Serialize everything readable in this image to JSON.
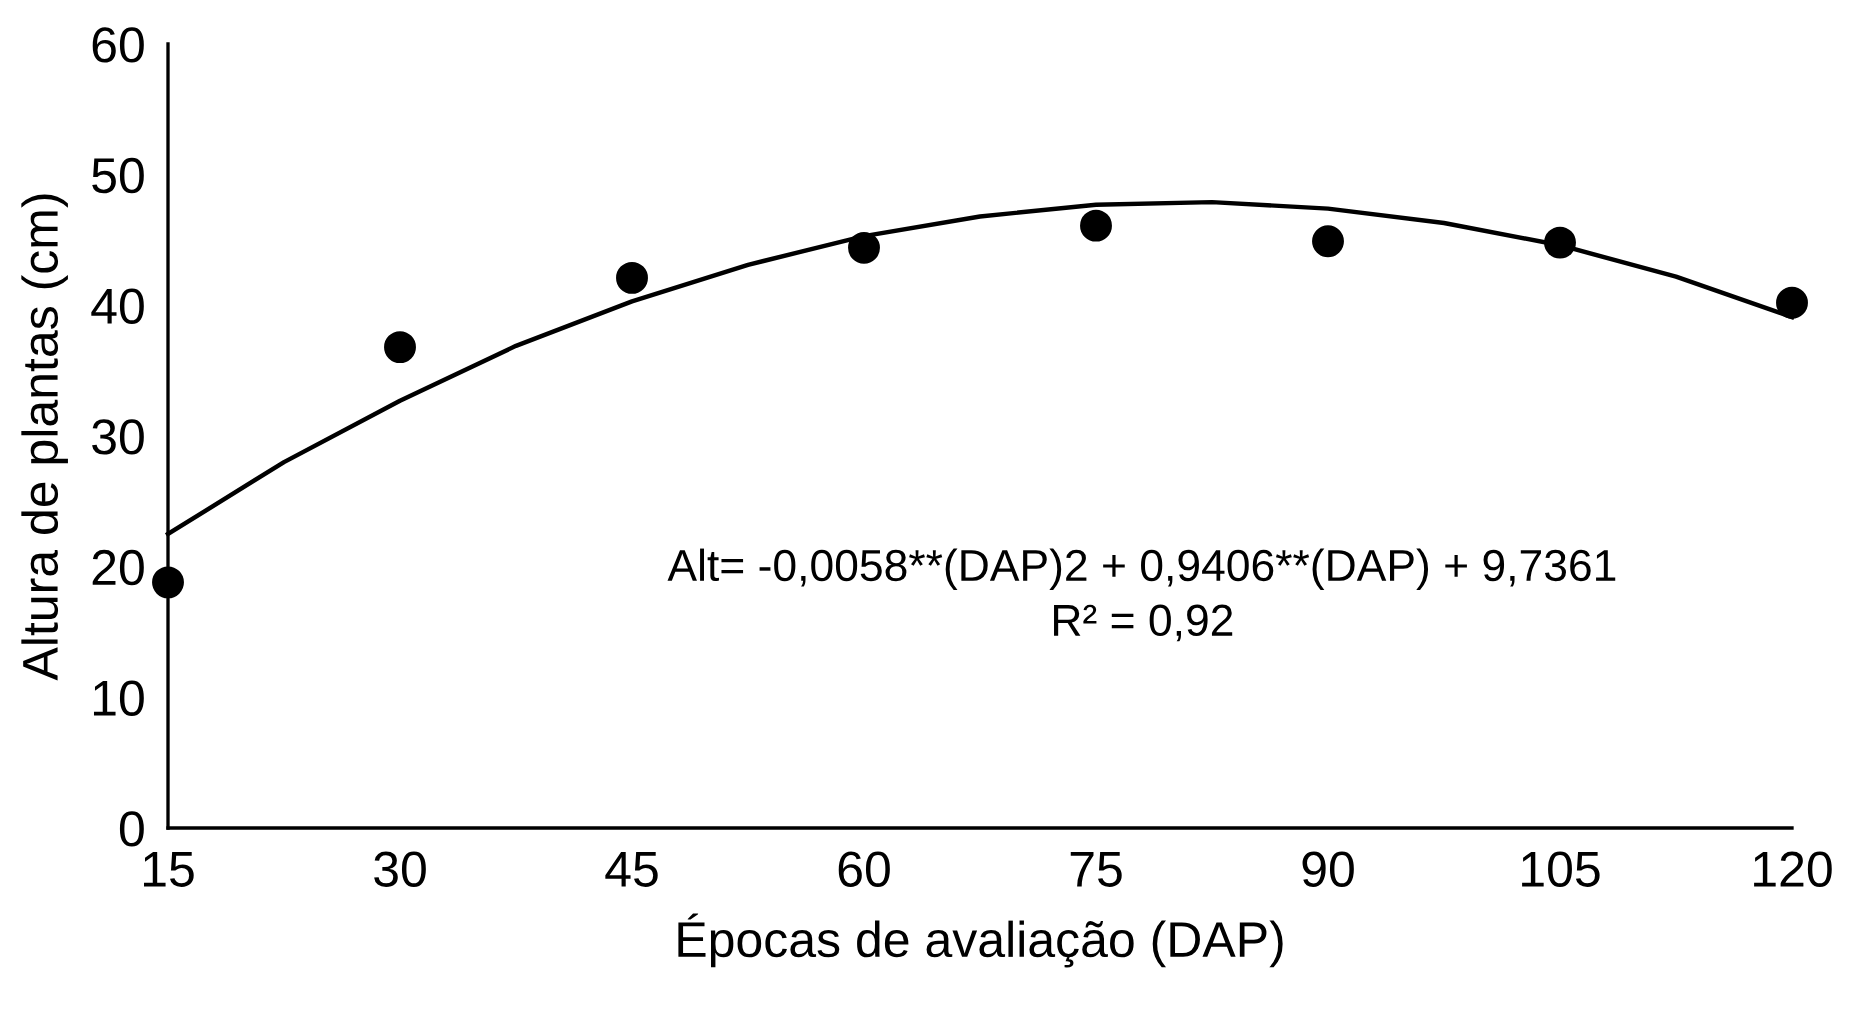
{
  "chart_data": {
    "type": "scatter",
    "xlabel": "Épocas de avaliação (DAP)",
    "ylabel": "Altura de plantas (cm)",
    "xlim": [
      15,
      120
    ],
    "xticks": [
      15,
      30,
      45,
      60,
      75,
      90,
      105,
      120
    ],
    "ylim": [
      0,
      60
    ],
    "yticks": [
      0,
      10,
      20,
      30,
      40,
      50,
      60
    ],
    "grid": false,
    "legend": false,
    "marker": "circle",
    "series": [
      {
        "color": "#000000",
        "x": [
          15,
          30,
          45,
          60,
          75,
          90,
          105,
          120
        ],
        "values": [
          18.8,
          36.8,
          42.1,
          44.4,
          46.1,
          44.9,
          44.8,
          40.2
        ]
      },
      {
        "type": "line",
        "color": "#000000",
        "line_style": "solid",
        "marker": "none",
        "x": [
          15,
          22.5,
          30,
          37.5,
          45,
          52.5,
          60,
          67.5,
          75,
          82.5,
          90,
          97.5,
          105,
          112.5,
          120
        ],
        "values": [
          22.5,
          28.0,
          32.7,
          36.9,
          40.3,
          43.1,
          45.3,
          46.8,
          47.7,
          47.9,
          47.4,
          46.3,
          44.6,
          42.2,
          39.1
        ]
      }
    ],
    "annotations": [
      "Alt= -0,0058**(DAP)2 + 0,9406**(DAP) + 9,7361",
      "R² = 0,92"
    ]
  }
}
